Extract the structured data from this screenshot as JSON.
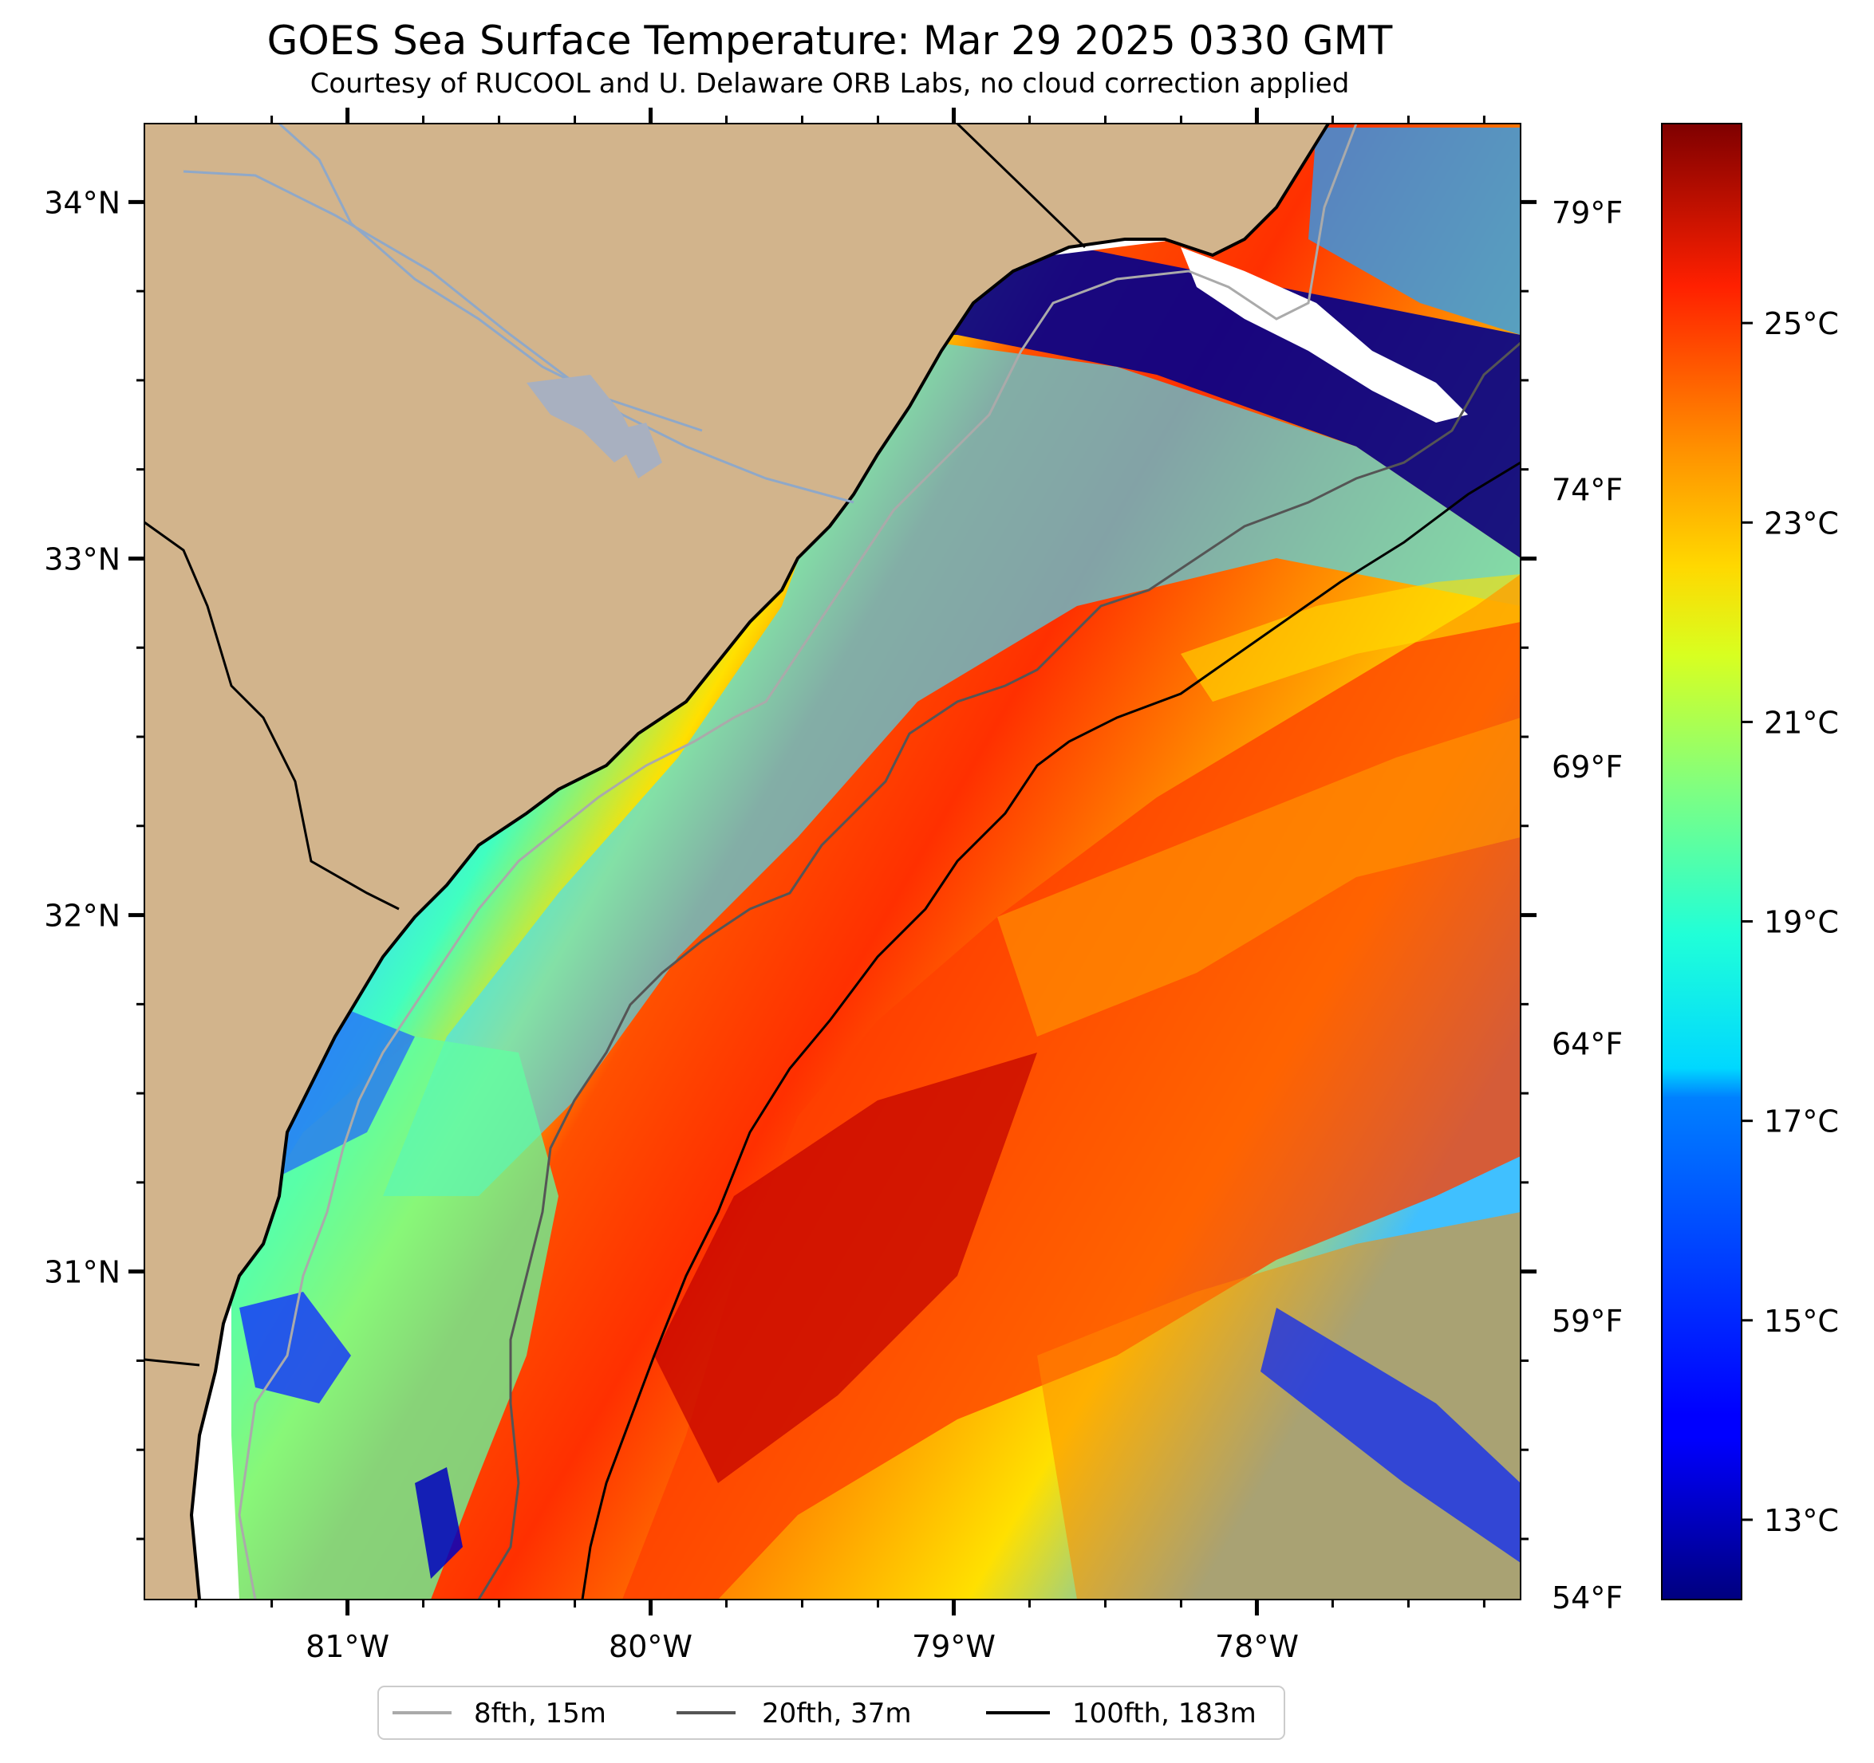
{
  "title": "GOES Sea Surface Temperature: Mar 29 2025 0330 GMT",
  "subtitle": "Courtesy of RUCOOL and U. Delaware ORB Labs, no cloud correction applied",
  "map": {
    "lon_range": [
      -81.67,
      -77.13
    ],
    "lat_range": [
      30.08,
      34.22
    ],
    "lon_ticks": [
      {
        "value": -81,
        "label": "81°W"
      },
      {
        "value": -80,
        "label": "80°W"
      },
      {
        "value": -79,
        "label": "79°W"
      },
      {
        "value": -78,
        "label": "78°W"
      }
    ],
    "lat_ticks": [
      {
        "value": 34,
        "label": "34°N"
      },
      {
        "value": 33,
        "label": "33°N"
      },
      {
        "value": 32,
        "label": "32°N"
      },
      {
        "value": 31,
        "label": "31°N"
      }
    ],
    "fahrenheit_ticks": [
      {
        "value": 79,
        "label": "79°F"
      },
      {
        "value": 74,
        "label": "74°F"
      },
      {
        "value": 69,
        "label": "69°F"
      },
      {
        "value": 64,
        "label": "64°F"
      },
      {
        "value": 59,
        "label": "59°F"
      },
      {
        "value": 54,
        "label": "54°F"
      }
    ],
    "land_color": "#d2b48c",
    "ocean_no_data_color": "#ffffff"
  },
  "colorbar": {
    "colormap": "jet",
    "range_c": [
      12.2,
      27.0
    ],
    "ticks": [
      {
        "value": 13,
        "label": "13°C"
      },
      {
        "value": 15,
        "label": "15°C"
      },
      {
        "value": 17,
        "label": "17°C"
      },
      {
        "value": 19,
        "label": "19°C"
      },
      {
        "value": 21,
        "label": "21°C"
      },
      {
        "value": 23,
        "label": "23°C"
      },
      {
        "value": 25,
        "label": "25°C"
      }
    ]
  },
  "legend": {
    "placement": "bottom-center",
    "items": [
      {
        "label": "8fth, 15m",
        "color": "#aaaaaa"
      },
      {
        "label": "20fth, 37m",
        "color": "#555555"
      },
      {
        "label": "100fth, 183m",
        "color": "#000000"
      }
    ]
  }
}
